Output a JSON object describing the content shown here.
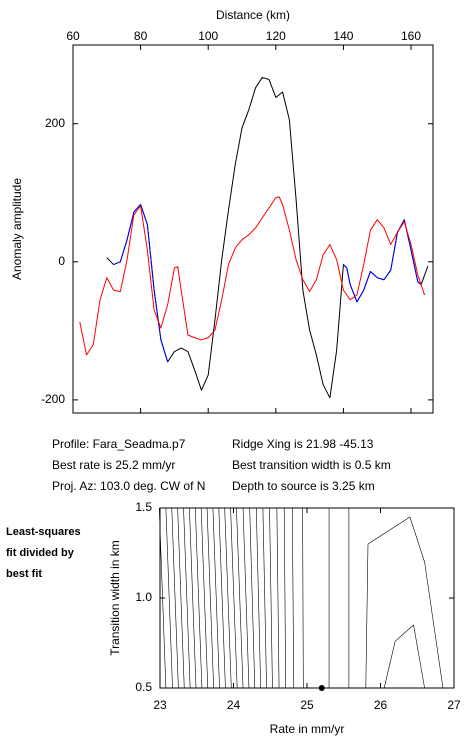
{
  "chart_data": [
    {
      "type": "line",
      "xlabel": "Distance (km)",
      "ylabel": "Anomaly amplitude",
      "xaxis_position": "top",
      "xlim": [
        60,
        166.5
      ],
      "ylim": [
        -219,
        314
      ],
      "xticks": [
        60,
        80,
        100,
        120,
        140,
        160
      ],
      "yticks": [
        -200,
        0,
        200
      ],
      "series": [
        {
          "color": "#000000",
          "x": [
            70,
            72,
            74,
            76,
            78,
            80,
            82,
            84,
            86,
            88,
            90,
            92,
            94,
            96,
            98,
            100,
            102,
            104,
            106,
            108,
            110,
            112,
            114,
            116,
            118,
            120,
            122,
            124,
            126,
            128,
            130,
            132,
            134,
            136,
            138,
            140,
            141,
            142,
            144,
            146,
            148,
            150,
            152,
            154,
            156,
            158,
            160,
            162,
            163,
            165
          ],
          "values": [
            6,
            -4,
            0,
            32,
            72,
            83,
            54,
            -41,
            -113,
            -145,
            -130,
            -125,
            -130,
            -157,
            -186,
            -164,
            -84,
            3,
            75,
            141,
            194,
            220,
            252,
            267,
            264,
            238,
            246,
            206,
            90,
            -41,
            -99,
            -135,
            -178,
            -197,
            -128,
            -4,
            -9,
            -33,
            -58,
            -41,
            -14,
            -23,
            -26,
            -12,
            43,
            61,
            17,
            -29,
            -33,
            -6
          ]
        },
        {
          "color": "#0000ff",
          "x": [
            72,
            74,
            76,
            78,
            80,
            82,
            84,
            86,
            88,
            114,
            140,
            141,
            142,
            144,
            146,
            148,
            150,
            152,
            154,
            156,
            158,
            160,
            162,
            163
          ],
          "values": [
            -4,
            0,
            32,
            72,
            83,
            54,
            -41,
            -113,
            -145,
            null,
            -4,
            -9,
            -33,
            -58,
            -41,
            -14,
            -23,
            -26,
            -12,
            43,
            61,
            17,
            -29,
            -33
          ]
        },
        {
          "color": "#ff0000",
          "x": [
            62,
            64,
            66,
            68,
            70,
            72,
            74,
            76,
            78,
            80,
            82,
            84,
            86,
            88,
            90,
            91,
            92,
            94,
            96,
            98,
            100,
            102,
            104,
            106,
            108,
            110,
            112,
            114,
            116,
            118,
            120,
            121,
            122,
            124,
            126,
            128,
            130,
            132,
            134,
            136,
            138,
            140,
            142,
            144,
            146,
            148,
            150,
            152,
            154,
            156,
            158,
            160,
            162,
            164
          ],
          "values": [
            -87,
            -135,
            -120,
            -55,
            -23,
            -41,
            -43,
            3,
            68,
            81,
            17,
            -70,
            -96,
            -62,
            -9,
            -7,
            -41,
            -106,
            -110,
            -113,
            -110,
            -99,
            -55,
            -4,
            20,
            32,
            39,
            49,
            64,
            78,
            93,
            94,
            83,
            46,
            3,
            -26,
            -43,
            -26,
            10,
            25,
            3,
            -41,
            -55,
            -48,
            -4,
            46,
            61,
            49,
            25,
            43,
            58,
            25,
            -19,
            -48
          ]
        }
      ],
      "annotations": [
        "Profile: Fara_Seadma.p7",
        "Best rate is 25.2 mm/yr",
        "Proj. Az: 103.0 deg. CW of N",
        "Ridge Xing is 21.98 -45.13",
        "Best transition width is 0.5 km",
        "Depth to source is   3.25 km"
      ]
    },
    {
      "type": "contour",
      "xlabel": "Rate in mm/yr",
      "ylabel": "Transition width in km",
      "xlim": [
        23,
        27
      ],
      "ylim": [
        0.5,
        1.5
      ],
      "xticks": [
        23,
        24,
        25,
        26,
        27
      ],
      "yticks": [
        0.5,
        {
          "value": 1,
          "label": "1.0"
        },
        1.5
      ],
      "color": "#000000",
      "contours": [
        {
          "x": [
            23.08,
            22.99
          ],
          "y": [
            0.5,
            1.5
          ]
        },
        {
          "x": [
            23.17,
            23.08
          ],
          "y": [
            0.5,
            1.5
          ]
        },
        {
          "x": [
            23.25,
            23.16
          ],
          "y": [
            0.5,
            1.5
          ]
        },
        {
          "x": [
            23.33,
            23.24
          ],
          "y": [
            0.5,
            1.5
          ]
        },
        {
          "x": [
            23.41,
            23.32
          ],
          "y": [
            0.5,
            1.5
          ]
        },
        {
          "x": [
            23.49,
            23.4
          ],
          "y": [
            0.5,
            1.5
          ]
        },
        {
          "x": [
            23.57,
            23.48
          ],
          "y": [
            0.5,
            1.5
          ]
        },
        {
          "x": [
            23.65,
            23.56
          ],
          "y": [
            0.5,
            1.5
          ]
        },
        {
          "x": [
            23.73,
            23.64
          ],
          "y": [
            0.5,
            1.5
          ]
        },
        {
          "x": [
            23.81,
            23.72
          ],
          "y": [
            0.5,
            1.5
          ]
        },
        {
          "x": [
            23.89,
            23.8
          ],
          "y": [
            0.5,
            1.5
          ]
        },
        {
          "x": [
            23.97,
            23.88
          ],
          "y": [
            0.5,
            1.5
          ]
        },
        {
          "x": [
            24.05,
            23.96
          ],
          "y": [
            0.5,
            1.5
          ]
        },
        {
          "x": [
            24.13,
            24.04
          ],
          "y": [
            0.5,
            1.5
          ]
        },
        {
          "x": [
            24.21,
            24.13
          ],
          "y": [
            0.5,
            1.5
          ]
        },
        {
          "x": [
            24.29,
            24.22
          ],
          "y": [
            0.5,
            1.5
          ]
        },
        {
          "x": [
            24.37,
            24.31
          ],
          "y": [
            0.5,
            1.5
          ]
        },
        {
          "x": [
            24.45,
            24.4
          ],
          "y": [
            0.5,
            1.5
          ]
        },
        {
          "x": [
            24.53,
            24.49
          ],
          "y": [
            0.5,
            1.5
          ]
        },
        {
          "x": [
            24.62,
            24.59
          ],
          "y": [
            0.5,
            1.5
          ]
        },
        {
          "x": [
            24.71,
            24.69
          ],
          "y": [
            0.5,
            1.5
          ]
        },
        {
          "x": [
            24.82,
            24.8
          ],
          "y": [
            0.5,
            1.5
          ]
        },
        {
          "x": [
            24.95,
            24.94
          ],
          "y": [
            0.5,
            1.5
          ]
        },
        {
          "x": [
            25.3,
            25.3
          ],
          "y": [
            0.5,
            1.5
          ]
        },
        {
          "x": [
            25.57,
            25.57
          ],
          "y": [
            0.5,
            1.5
          ]
        },
        {
          "x": [
            25.8,
            25.83,
            26.4,
            26.6,
            26.85
          ],
          "y": [
            0.5,
            1.3,
            1.45,
            1.2,
            0.5
          ]
        },
        {
          "x": [
            26.05,
            26.2,
            26.45,
            26.6
          ],
          "y": [
            0.5,
            0.76,
            0.85,
            0.5
          ]
        }
      ],
      "best_fit": {
        "x": 25.2,
        "y": 0.5
      },
      "annotations": [
        "Least-squares",
        "fit divided by",
        "best fit"
      ]
    }
  ]
}
